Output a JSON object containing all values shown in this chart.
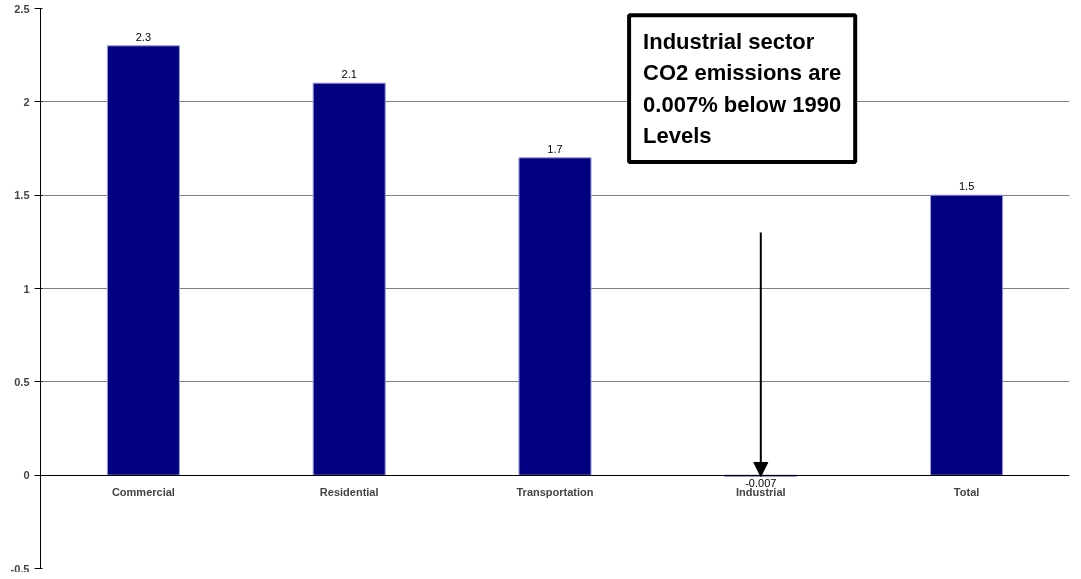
{
  "chart_data": {
    "type": "bar",
    "categories": [
      "Commercial",
      "Residential",
      "Transportation",
      "Industrial",
      "Total"
    ],
    "values": [
      2.3,
      2.1,
      1.7,
      -0.007,
      1.5
    ],
    "color": "#000080",
    "data_labels": true,
    "ylim": [
      -0.5,
      2.5
    ],
    "yticks": [
      -0.5,
      0,
      0.5,
      1,
      1.5,
      2,
      2.5
    ],
    "grid": "y",
    "annotations": [
      "Industrial sector CO2 emissions are 0.007% below 1990 Levels"
    ]
  }
}
